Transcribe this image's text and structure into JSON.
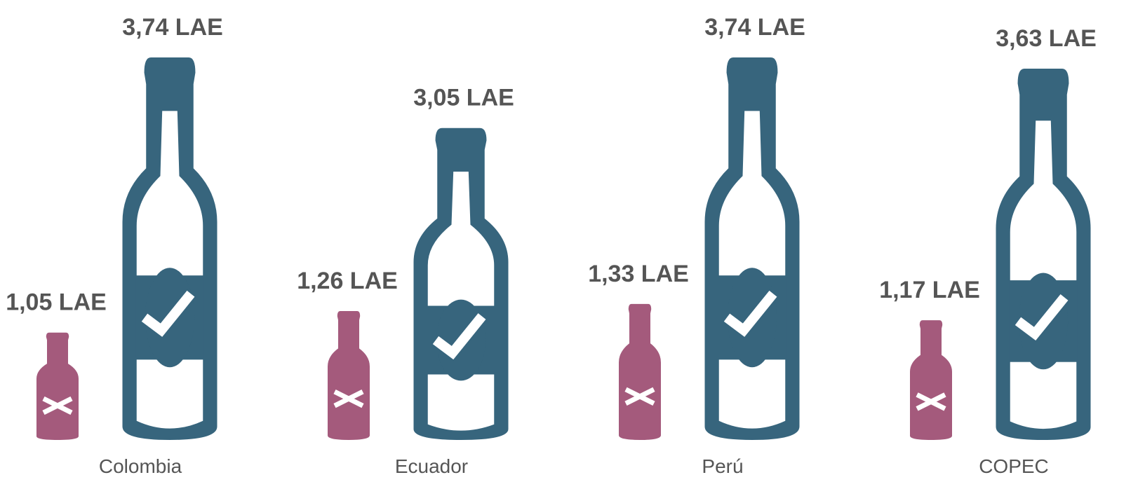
{
  "chart_data": {
    "type": "pictogram",
    "categories": [
      "Colombia",
      "Ecuador",
      "Perú",
      "COPEC"
    ],
    "series": [
      {
        "color": "#a45a7c",
        "values": [
          1.05,
          1.26,
          1.33,
          1.17
        ],
        "value_labels": [
          "1,05 LAE",
          "1,26 LAE",
          "1,33 LAE",
          "1,17 LAE"
        ]
      },
      {
        "color": "#37657d",
        "values": [
          3.74,
          3.05,
          3.74,
          3.63
        ],
        "value_labels": [
          "3,74 LAE",
          "3,05 LAE",
          "3,74 LAE",
          "3,63 LAE"
        ]
      }
    ]
  }
}
